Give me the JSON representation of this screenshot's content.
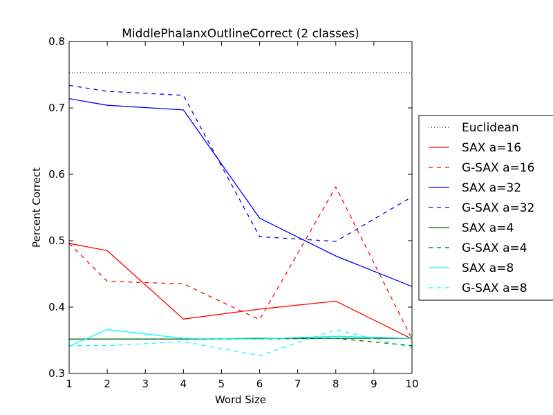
{
  "chart_data": {
    "type": "line",
    "title": "MiddlePhalanxOutlineCorrect (2 classes)",
    "xlabel": "Word Size",
    "ylabel": "Percent Correct",
    "xlim": [
      1,
      10
    ],
    "ylim": [
      0.3,
      0.8
    ],
    "xticks": [
      1,
      2,
      3,
      4,
      5,
      6,
      7,
      8,
      9,
      10
    ],
    "yticks": [
      0.3,
      0.4,
      0.5,
      0.6,
      0.7,
      0.8
    ],
    "grid": false,
    "legend_position": "outside right",
    "x": [
      1,
      2,
      4,
      6,
      8,
      10
    ],
    "series": [
      {
        "name": "Euclidean",
        "color": "#000000",
        "style": "dotted",
        "values": [
          0.753,
          0.753,
          0.753,
          0.753,
          0.753,
          0.753
        ]
      },
      {
        "name": "SAX a=16",
        "color": "#ff0000",
        "style": "solid",
        "values": [
          0.496,
          0.485,
          0.382,
          0.397,
          0.409,
          0.352
        ]
      },
      {
        "name": "G-SAX a=16",
        "color": "#ff0000",
        "style": "dashed",
        "values": [
          0.496,
          0.439,
          0.435,
          0.381,
          0.581,
          0.352
        ]
      },
      {
        "name": "SAX a=32",
        "color": "#0000ff",
        "style": "solid",
        "values": [
          0.714,
          0.704,
          0.697,
          0.534,
          0.477,
          0.431
        ]
      },
      {
        "name": "G-SAX a=32",
        "color": "#0000ff",
        "style": "dashed",
        "values": [
          0.734,
          0.725,
          0.719,
          0.506,
          0.499,
          0.566
        ]
      },
      {
        "name": "SAX a=4",
        "color": "#006400",
        "style": "solid",
        "values": [
          0.352,
          0.352,
          0.352,
          0.353,
          0.353,
          0.353
        ]
      },
      {
        "name": "G-SAX a=4",
        "color": "#006400",
        "style": "dashed",
        "values": [
          0.352,
          0.352,
          0.352,
          0.352,
          0.353,
          0.342
        ]
      },
      {
        "name": "SAX a=8",
        "color": "#00ffff",
        "style": "solid",
        "values": [
          0.341,
          0.366,
          0.353,
          0.352,
          0.356,
          0.353
        ]
      },
      {
        "name": "G-SAX a=8",
        "color": "#00ffff",
        "style": "dashed",
        "values": [
          0.342,
          0.342,
          0.348,
          0.327,
          0.366,
          0.339
        ]
      }
    ]
  }
}
